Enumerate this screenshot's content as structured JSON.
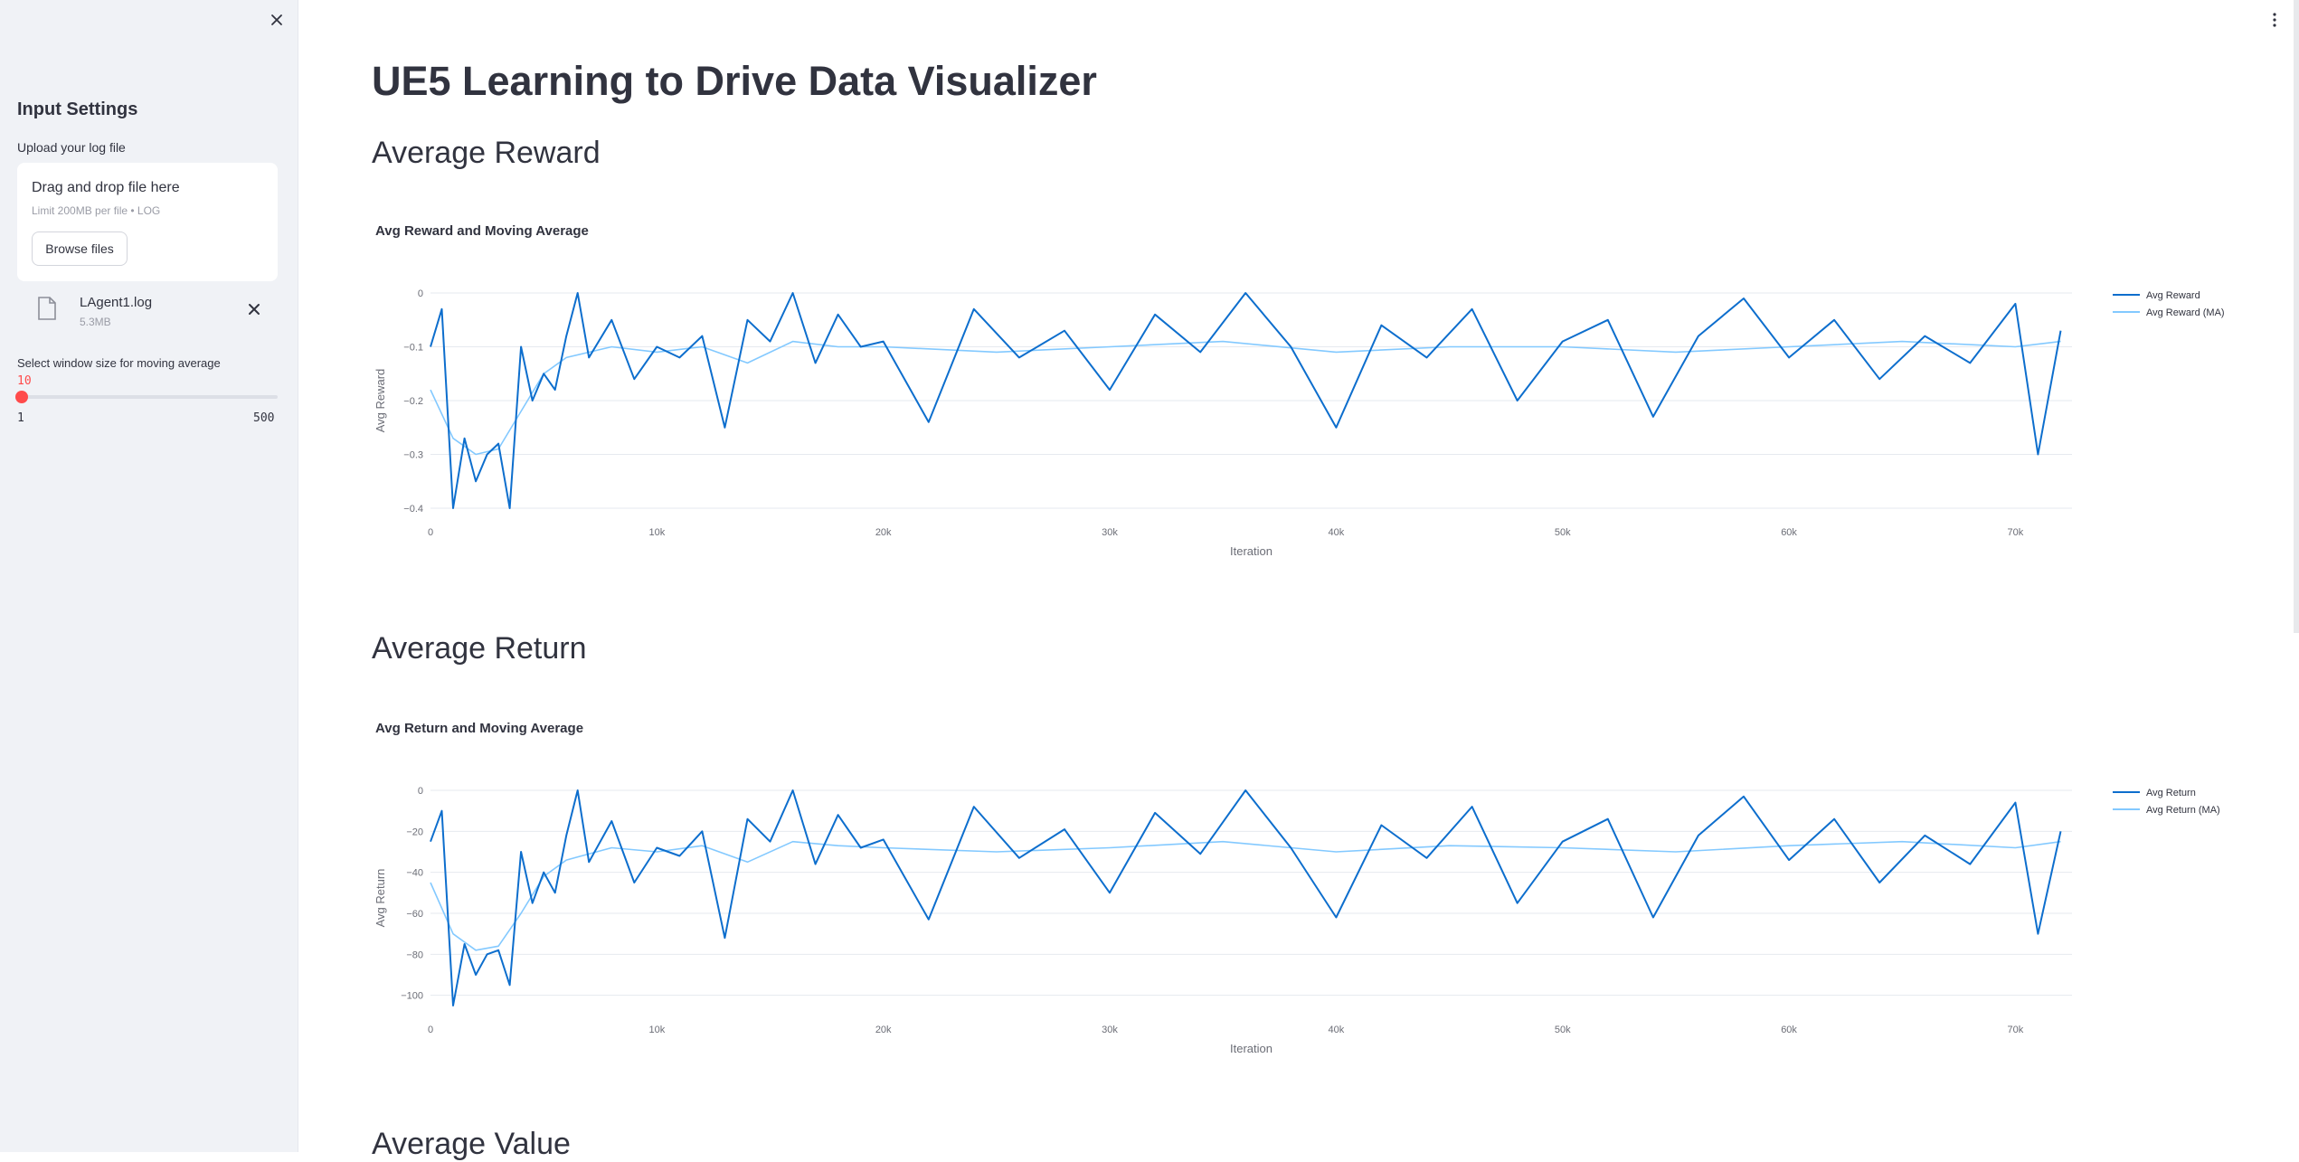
{
  "sidebar": {
    "title": "Input Settings",
    "upload_label": "Upload your log file",
    "dropzone": {
      "title": "Drag and drop file here",
      "limit": "Limit 200MB per file • LOG",
      "browse_label": "Browse files"
    },
    "file": {
      "name": "LAgent1.log",
      "size": "5.3MB"
    },
    "slider": {
      "label": "Select window size for moving average",
      "value": "10",
      "min": "1",
      "max": "500"
    }
  },
  "main": {
    "title": "UE5 Learning to Drive Data Visualizer",
    "sections": [
      {
        "heading": "Average Reward"
      },
      {
        "heading": "Average Return"
      },
      {
        "heading": "Average Value"
      }
    ]
  },
  "colors": {
    "accent": "#ff4b4b",
    "series_main": "#0d6ecd",
    "series_ma": "#83c9ff",
    "sidebar_bg": "#f0f2f6"
  },
  "chart_data": [
    {
      "type": "line",
      "title": "Avg Reward and Moving Average",
      "xlabel": "Iteration",
      "ylabel": "Avg Reward",
      "xlim": [
        0,
        72500
      ],
      "ylim": [
        -0.4,
        0
      ],
      "x_ticks": [
        0,
        10000,
        20000,
        30000,
        40000,
        50000,
        60000,
        70000
      ],
      "x_tick_labels": [
        "0",
        "10k",
        "20k",
        "30k",
        "40k",
        "50k",
        "60k",
        "70k"
      ],
      "y_ticks": [
        0,
        -0.1,
        -0.2,
        -0.3,
        -0.4
      ],
      "y_tick_labels": [
        "0",
        "−0.1",
        "−0.2",
        "−0.3",
        "−0.4"
      ],
      "grid": true,
      "legend_position": "top-right",
      "series": [
        {
          "name": "Avg Reward",
          "color": "#0d6ecd",
          "x": [
            0,
            500,
            1000,
            1500,
            2000,
            2500,
            3000,
            3500,
            4000,
            4500,
            5000,
            5500,
            6000,
            6500,
            7000,
            8000,
            9000,
            10000,
            11000,
            12000,
            13000,
            14000,
            15000,
            16000,
            17000,
            18000,
            19000,
            20000,
            22000,
            24000,
            26000,
            28000,
            30000,
            32000,
            34000,
            36000,
            38000,
            40000,
            42000,
            44000,
            46000,
            48000,
            50000,
            52000,
            54000,
            56000,
            58000,
            60000,
            62000,
            64000,
            66000,
            68000,
            70000,
            71000,
            72000
          ],
          "y": [
            -0.1,
            -0.03,
            -0.4,
            -0.27,
            -0.35,
            -0.3,
            -0.28,
            -0.4,
            -0.1,
            -0.2,
            -0.15,
            -0.18,
            -0.08,
            0,
            -0.12,
            -0.05,
            -0.16,
            -0.1,
            -0.12,
            -0.08,
            -0.25,
            -0.05,
            -0.09,
            0,
            -0.13,
            -0.04,
            -0.1,
            -0.09,
            -0.24,
            -0.03,
            -0.12,
            -0.07,
            -0.18,
            -0.04,
            -0.11,
            0,
            -0.1,
            -0.25,
            -0.06,
            -0.12,
            -0.03,
            -0.2,
            -0.09,
            -0.05,
            -0.23,
            -0.08,
            -0.01,
            -0.12,
            -0.05,
            -0.16,
            -0.08,
            -0.13,
            -0.02,
            -0.3,
            -0.07
          ]
        },
        {
          "name": "Avg Reward (MA)",
          "color": "#83c9ff",
          "x": [
            0,
            1000,
            2000,
            3000,
            4000,
            5000,
            6000,
            8000,
            10000,
            12000,
            14000,
            16000,
            18000,
            20000,
            25000,
            30000,
            35000,
            40000,
            45000,
            50000,
            55000,
            60000,
            65000,
            70000,
            72000
          ],
          "y": [
            -0.18,
            -0.27,
            -0.3,
            -0.29,
            -0.22,
            -0.15,
            -0.12,
            -0.1,
            -0.11,
            -0.1,
            -0.13,
            -0.09,
            -0.1,
            -0.1,
            -0.11,
            -0.1,
            -0.09,
            -0.11,
            -0.1,
            -0.1,
            -0.11,
            -0.1,
            -0.09,
            -0.1,
            -0.09
          ]
        }
      ]
    },
    {
      "type": "line",
      "title": "Avg Return and Moving Average",
      "xlabel": "Iteration",
      "ylabel": "Avg Return",
      "xlim": [
        0,
        72500
      ],
      "ylim": [
        -105,
        0
      ],
      "x_ticks": [
        0,
        10000,
        20000,
        30000,
        40000,
        50000,
        60000,
        70000
      ],
      "x_tick_labels": [
        "0",
        "10k",
        "20k",
        "30k",
        "40k",
        "50k",
        "60k",
        "70k"
      ],
      "y_ticks": [
        0,
        -20,
        -40,
        -60,
        -80,
        -100
      ],
      "y_tick_labels": [
        "0",
        "−20",
        "−40",
        "−60",
        "−80",
        "−100"
      ],
      "grid": true,
      "legend_position": "top-right",
      "series": [
        {
          "name": "Avg Return",
          "color": "#0d6ecd",
          "x": [
            0,
            500,
            1000,
            1500,
            2000,
            2500,
            3000,
            3500,
            4000,
            4500,
            5000,
            5500,
            6000,
            6500,
            7000,
            8000,
            9000,
            10000,
            11000,
            12000,
            13000,
            14000,
            15000,
            16000,
            17000,
            18000,
            19000,
            20000,
            22000,
            24000,
            26000,
            28000,
            30000,
            32000,
            34000,
            36000,
            38000,
            40000,
            42000,
            44000,
            46000,
            48000,
            50000,
            52000,
            54000,
            56000,
            58000,
            60000,
            62000,
            64000,
            66000,
            68000,
            70000,
            71000,
            72000
          ],
          "y": [
            -25,
            -10,
            -105,
            -75,
            -90,
            -80,
            -78,
            -95,
            -30,
            -55,
            -40,
            -50,
            -22,
            0,
            -35,
            -15,
            -45,
            -28,
            -32,
            -20,
            -72,
            -14,
            -25,
            0,
            -36,
            -12,
            -28,
            -24,
            -63,
            -8,
            -33,
            -19,
            -50,
            -11,
            -31,
            0,
            -28,
            -62,
            -17,
            -33,
            -8,
            -55,
            -25,
            -14,
            -62,
            -22,
            -3,
            -34,
            -14,
            -45,
            -22,
            -36,
            -6,
            -70,
            -20
          ]
        },
        {
          "name": "Avg Return (MA)",
          "color": "#83c9ff",
          "x": [
            0,
            1000,
            2000,
            3000,
            4000,
            5000,
            6000,
            8000,
            10000,
            12000,
            14000,
            16000,
            18000,
            20000,
            25000,
            30000,
            35000,
            40000,
            45000,
            50000,
            55000,
            60000,
            65000,
            70000,
            72000
          ],
          "y": [
            -45,
            -70,
            -78,
            -76,
            -60,
            -42,
            -34,
            -28,
            -30,
            -27,
            -35,
            -25,
            -27,
            -28,
            -30,
            -28,
            -25,
            -30,
            -27,
            -28,
            -30,
            -27,
            -25,
            -28,
            -25
          ]
        }
      ]
    }
  ]
}
